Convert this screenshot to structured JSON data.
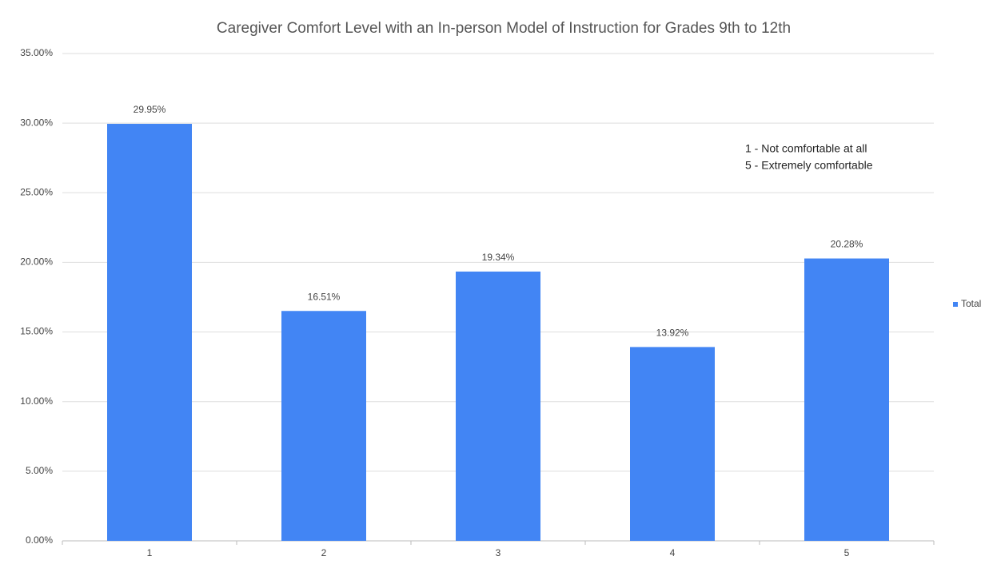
{
  "chart_data": {
    "type": "bar",
    "title": "Caregiver Comfort Level with  an  In-person Model of Instruction for Grades 9th to 12th",
    "annotations": [
      "1 - Not comfortable at all",
      "5 - Extremely comfortable"
    ],
    "categories": [
      "1",
      "2",
      "3",
      "4",
      "5"
    ],
    "series": [
      {
        "name": "Total",
        "color": "#4285f4",
        "values": [
          29.95,
          16.51,
          19.34,
          13.92,
          20.28
        ],
        "value_labels": [
          "29.95%",
          "16.51%",
          "19.34%",
          "13.92%",
          "20.28%"
        ]
      }
    ],
    "ylim": [
      0,
      35
    ],
    "yticks": [
      {
        "value": 0,
        "label": "0.00%"
      },
      {
        "value": 5,
        "label": "5.00%"
      },
      {
        "value": 10,
        "label": "10.00%"
      },
      {
        "value": 15,
        "label": "15.00%"
      },
      {
        "value": 20,
        "label": "20.00%"
      },
      {
        "value": 25,
        "label": "25.00%"
      },
      {
        "value": 30,
        "label": "30.00%"
      },
      {
        "value": 35,
        "label": "35.00%"
      }
    ],
    "grid": true,
    "legend": "right"
  }
}
